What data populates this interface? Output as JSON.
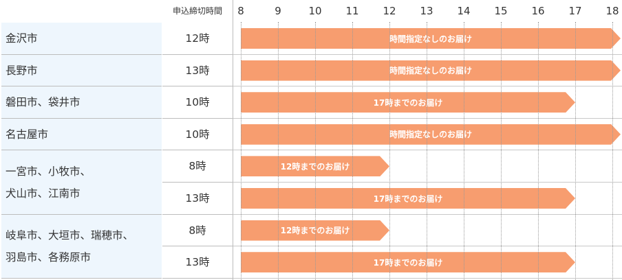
{
  "header": {
    "deadline_label": "申込締切時間",
    "hours": [
      "8",
      "9",
      "10",
      "11",
      "12",
      "13",
      "14",
      "15",
      "16",
      "17",
      "18"
    ],
    "highlighted_hours": [
      "12",
      "17"
    ]
  },
  "colors": {
    "bar": "#f79d6f",
    "city_bg": "#eef6fd",
    "hour_highlight": "#f9c7a5"
  },
  "regions": [
    {
      "lines": [
        "金沢市"
      ],
      "rows": [
        {
          "deadline": "12時",
          "bar_label": "時間指定なしのお届け",
          "end_hour": 18
        }
      ]
    },
    {
      "lines": [
        "長野市"
      ],
      "rows": [
        {
          "deadline": "13時",
          "bar_label": "時間指定なしのお届け",
          "end_hour": 18
        }
      ]
    },
    {
      "lines": [
        "磐田市、袋井市"
      ],
      "rows": [
        {
          "deadline": "10時",
          "bar_label": "17時までのお届け",
          "end_hour": 17
        }
      ]
    },
    {
      "lines": [
        "名古屋市"
      ],
      "rows": [
        {
          "deadline": "10時",
          "bar_label": "時間指定なしのお届け",
          "end_hour": 18
        }
      ]
    },
    {
      "lines": [
        "一宮市、小牧市、",
        "犬山市、江南市"
      ],
      "rows": [
        {
          "deadline": "8時",
          "bar_label": "12時までのお届け",
          "end_hour": 12
        },
        {
          "deadline": "13時",
          "bar_label": "17時までのお届け",
          "end_hour": 17
        }
      ]
    },
    {
      "lines": [
        "岐阜市、大垣市、瑞穂市、",
        "羽島市、各務原市"
      ],
      "rows": [
        {
          "deadline": "8時",
          "bar_label": "12時までのお届け",
          "end_hour": 12
        },
        {
          "deadline": "13時",
          "bar_label": "17時までのお届け",
          "end_hour": 17
        }
      ]
    }
  ]
}
